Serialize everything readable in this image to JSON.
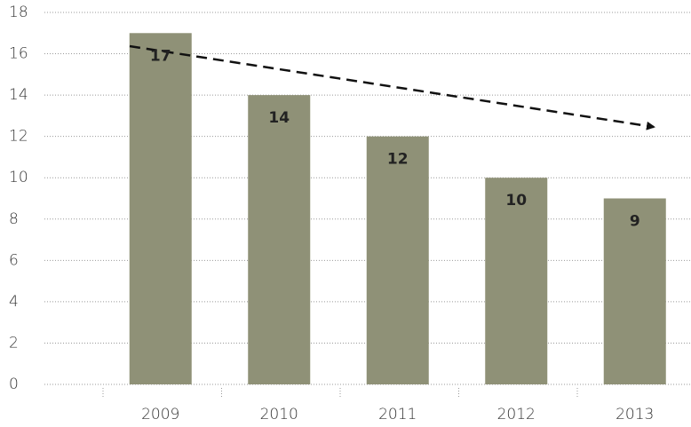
{
  "chart_data": {
    "type": "bar",
    "categories": [
      "2009",
      "2010",
      "2011",
      "2012",
      "2013"
    ],
    "values": [
      17,
      14,
      12,
      10,
      9
    ],
    "color": "#8f9177",
    "ylim": [
      0,
      18
    ],
    "yticks": [
      0,
      2,
      4,
      6,
      8,
      10,
      12,
      14,
      16,
      18
    ],
    "grid": true
  }
}
